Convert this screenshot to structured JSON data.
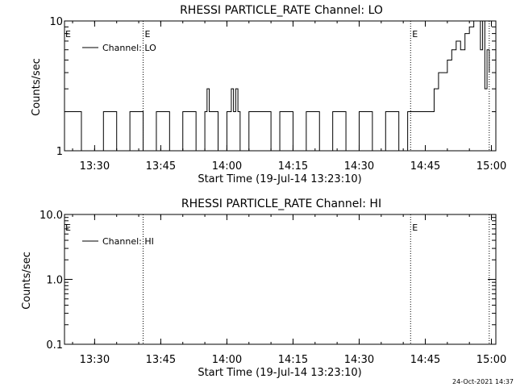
{
  "footer_timestamp": "24-Oct-2021 14:37",
  "chart_data": [
    {
      "type": "line",
      "title": "RHESSI PARTICLE_RATE Channel: LO",
      "xlabel": "Start Time (19-Jul-14 13:23:10)",
      "ylabel": "Counts/sec",
      "yscale": "log",
      "xlim": [
        "13:23:10",
        "15:01:00"
      ],
      "ylim": [
        1,
        10
      ],
      "x_ticks": [
        "13:30",
        "13:45",
        "14:00",
        "14:15",
        "14:30",
        "14:45",
        "15:00"
      ],
      "y_ticks": [
        "1",
        "10"
      ],
      "legend": {
        "label": "Channel: LO",
        "position": "top-left"
      },
      "event_markers": [
        {
          "time": "13:41:00",
          "label": "E"
        },
        {
          "time": "14:41:40",
          "label": "E"
        },
        {
          "time": "14:59:30",
          "label": ""
        }
      ],
      "series": [
        {
          "name": "Channel: LO",
          "x": [
            "13:23:10",
            "13:27:00",
            "13:32:00",
            "13:35:00",
            "13:38:00",
            "13:41:00",
            "13:44:00",
            "13:47:00",
            "13:50:00",
            "13:53:00",
            "13:55:00",
            "13:55:30",
            "13:56:00",
            "13:58:00",
            "14:00:00",
            "14:01:00",
            "14:01:30",
            "14:02:00",
            "14:02:30",
            "14:03:00",
            "14:05:00",
            "14:08:00",
            "14:10:00",
            "14:12:00",
            "14:15:00",
            "14:18:00",
            "14:21:00",
            "14:24:00",
            "14:27:00",
            "14:30:00",
            "14:33:00",
            "14:36:00",
            "14:39:00",
            "14:41:00",
            "14:43:00",
            "14:45:00",
            "14:46:00",
            "14:47:00",
            "14:48:00",
            "14:49:00",
            "14:50:00",
            "14:51:00",
            "14:52:00",
            "14:53:00",
            "14:54:00",
            "14:55:00",
            "14:56:00",
            "14:57:00",
            "14:57:30",
            "14:58:00",
            "14:58:30",
            "14:59:00",
            "14:59:30"
          ],
          "y": [
            2,
            1,
            2,
            1,
            2,
            1,
            2,
            1,
            2,
            1,
            2,
            3,
            2,
            1,
            2,
            3,
            2,
            3,
            2,
            1,
            2,
            2,
            1,
            2,
            1,
            2,
            1,
            2,
            1,
            2,
            1,
            2,
            1,
            2,
            2,
            2,
            2,
            3,
            4,
            4,
            5,
            6,
            7,
            6,
            8,
            9,
            10,
            10,
            6,
            10,
            3,
            6,
            4
          ]
        }
      ]
    },
    {
      "type": "line",
      "title": "RHESSI PARTICLE_RATE Channel: HI",
      "xlabel": "Start Time (19-Jul-14 13:23:10)",
      "ylabel": "Counts/sec",
      "yscale": "log",
      "xlim": [
        "13:23:10",
        "15:01:00"
      ],
      "ylim": [
        0.1,
        10
      ],
      "x_ticks": [
        "13:30",
        "13:45",
        "14:00",
        "14:15",
        "14:30",
        "14:45",
        "15:00"
      ],
      "y_ticks": [
        "0.1",
        "1.0",
        "10.0"
      ],
      "legend": {
        "label": "Channel: HI",
        "position": "top-left"
      },
      "event_markers": [
        {
          "time": "13:41:00",
          "label": ""
        },
        {
          "time": "14:41:40",
          "label": "E"
        },
        {
          "time": "14:59:30",
          "label": ""
        }
      ],
      "series": [
        {
          "name": "Channel: HI",
          "x": [],
          "y": []
        }
      ]
    }
  ]
}
